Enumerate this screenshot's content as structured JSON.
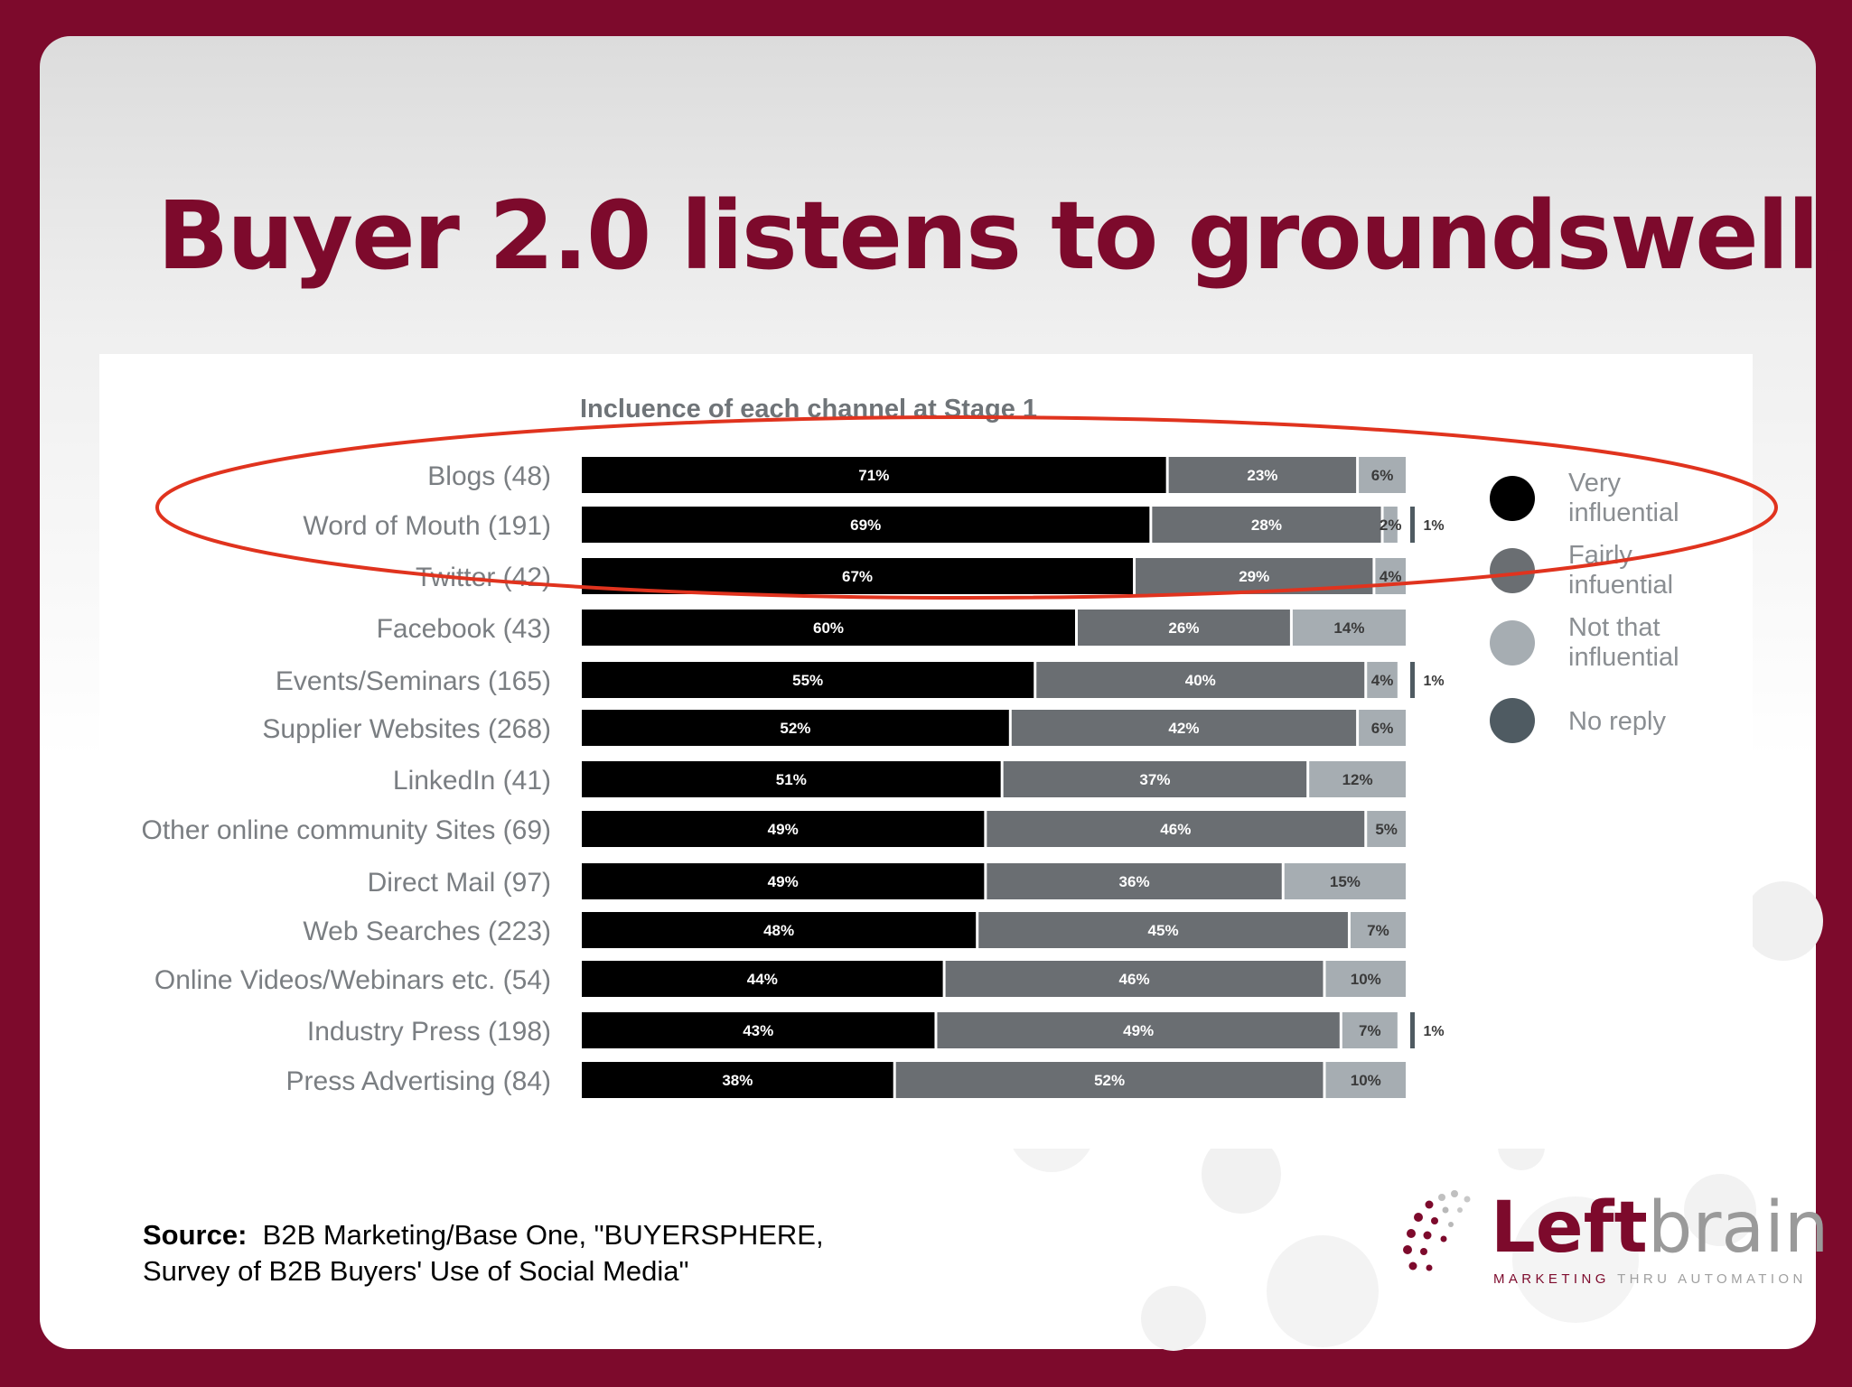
{
  "slide": {
    "title": "Buyer 2.0 listens to groundswell.",
    "source_label": "Source:",
    "source_line1": "B2B Marketing/Base One, \"BUYERSPHERE,",
    "source_line2": "Survey of  B2B Buyers' Use of Social Media\""
  },
  "logo": {
    "word_left": "Left",
    "word_right": "brain",
    "tagline_a": "MARKETING",
    "tagline_b": "THRU AUTOMATION"
  },
  "colors": {
    "brand": "#7d0a2c",
    "very": "#000000",
    "fairly": "#6a6e72",
    "not": "#a6adb2",
    "noreply": "#4f5b62",
    "highlight": "#e0331e"
  },
  "chart_data": {
    "type": "bar",
    "orientation": "horizontal",
    "stacked": true,
    "title": "Incluence of each channel at Stage 1",
    "xlim": [
      0,
      100
    ],
    "legend_placement": "right",
    "categories": [
      "Blogs (48)",
      "Word of Mouth (191)",
      "Twitter (42)",
      "Facebook (43)",
      "Events/Seminars (165)",
      "Supplier Websites (268)",
      "LinkedIn (41)",
      "Other online community Sites (69)",
      "Direct Mail (97)",
      "Web Searches (223)",
      "Online Videos/Webinars etc. (54)",
      "Industry Press (198)",
      "Press Advertising (84)"
    ],
    "series": [
      {
        "name": "Very influential",
        "values": [
          71,
          69,
          67,
          60,
          55,
          52,
          51,
          49,
          49,
          48,
          44,
          43,
          38
        ]
      },
      {
        "name": "Fairly influential",
        "values": [
          23,
          28,
          29,
          26,
          40,
          42,
          37,
          46,
          36,
          45,
          46,
          49,
          52
        ]
      },
      {
        "name": "Not that influential",
        "values": [
          6,
          2,
          4,
          14,
          4,
          6,
          12,
          5,
          15,
          7,
          10,
          7,
          10
        ]
      },
      {
        "name": "No reply",
        "values": [
          0,
          1,
          0,
          0,
          1,
          0,
          0,
          0,
          0,
          0,
          0,
          1,
          0
        ]
      }
    ],
    "highlighted_categories": [
      "Blogs (48)",
      "Word of Mouth (191)",
      "Twitter (42)"
    ]
  }
}
